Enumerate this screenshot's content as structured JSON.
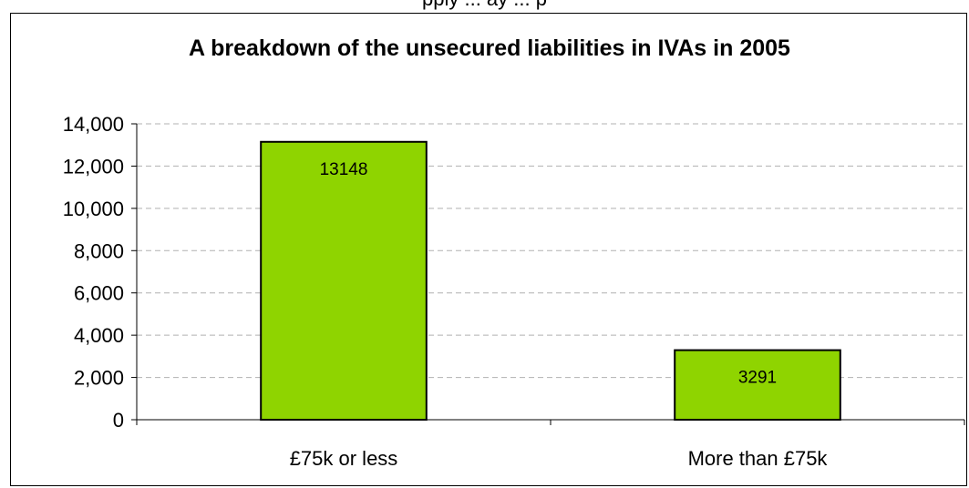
{
  "page": {
    "top_text": "pply ... ay ... p"
  },
  "chart_data": {
    "type": "bar",
    "title": "A breakdown of the unsecured liabilities in IVAs in 2005",
    "categories": [
      "£75k or less",
      "More than £75k"
    ],
    "values": [
      13148,
      3291
    ],
    "data_labels": [
      "13148",
      "3291"
    ],
    "ylim": [
      0,
      14000
    ],
    "yticks": [
      0,
      2000,
      4000,
      6000,
      8000,
      10000,
      12000,
      14000
    ],
    "ytick_labels": [
      "0",
      "2,000",
      "4,000",
      "6,000",
      "8,000",
      "10,000",
      "12,000",
      "14,000"
    ],
    "xlabel": "",
    "ylabel": "",
    "grid": true,
    "legend": "none",
    "bar_color": "#8fd400",
    "bar_edge_color": "#000000",
    "grid_color": "#b0b0b0"
  }
}
